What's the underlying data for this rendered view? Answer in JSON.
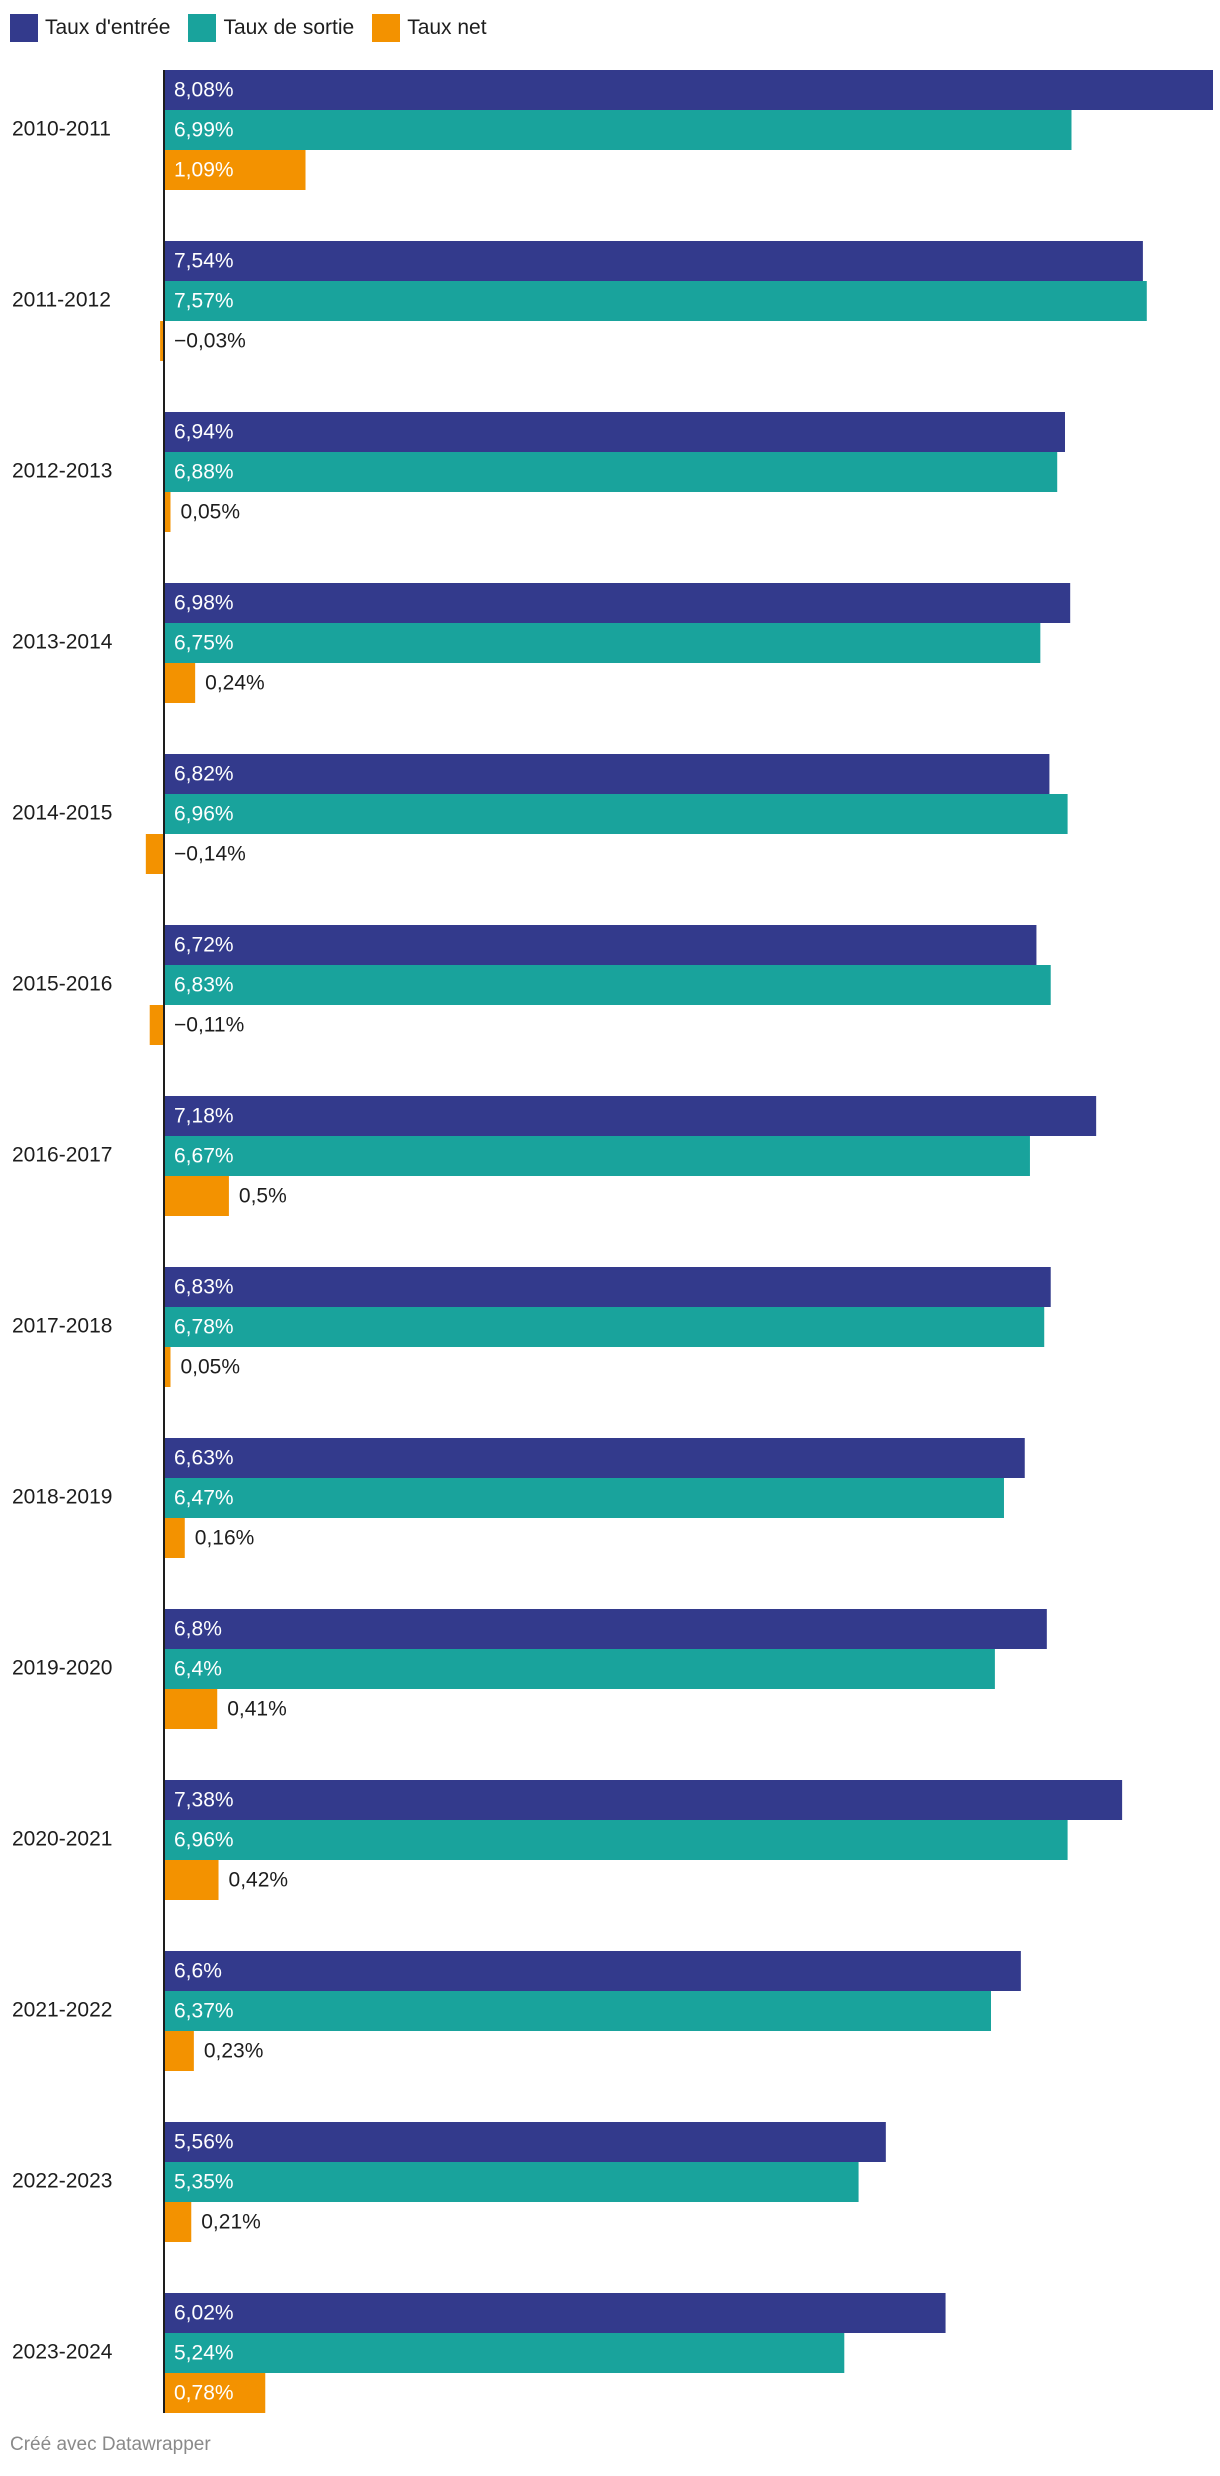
{
  "legend": {
    "items": [
      {
        "label": "Taux d'entrée",
        "color": "#333a8c"
      },
      {
        "label": "Taux de sortie",
        "color": "#19a39c"
      },
      {
        "label": "Taux net",
        "color": "#f39200"
      }
    ]
  },
  "footer": {
    "credit": "Créé avec Datawrapper"
  },
  "chart_data": {
    "type": "bar",
    "orientation": "horizontal",
    "title": "",
    "xlabel": "",
    "ylabel": "",
    "xlim": [
      -0.15,
      8.08
    ],
    "grid": false,
    "legend_position": "top-left",
    "categories": [
      "2010-2011",
      "2011-2012",
      "2012-2013",
      "2013-2014",
      "2014-2015",
      "2015-2016",
      "2016-2017",
      "2017-2018",
      "2018-2019",
      "2019-2020",
      "2020-2021",
      "2021-2022",
      "2022-2023",
      "2023-2024"
    ],
    "series": [
      {
        "name": "Taux d'entrée",
        "color": "#333a8c",
        "values": [
          8.08,
          7.54,
          6.94,
          6.98,
          6.82,
          6.72,
          7.18,
          6.83,
          6.63,
          6.8,
          7.38,
          6.6,
          5.56,
          6.02
        ],
        "labels": [
          "8,08%",
          "7,54%",
          "6,94%",
          "6,98%",
          "6,82%",
          "6,72%",
          "7,18%",
          "6,83%",
          "6,63%",
          "6,8%",
          "7,38%",
          "6,6%",
          "5,56%",
          "6,02%"
        ]
      },
      {
        "name": "Taux de sortie",
        "color": "#19a39c",
        "values": [
          6.99,
          7.57,
          6.88,
          6.75,
          6.96,
          6.83,
          6.67,
          6.78,
          6.47,
          6.4,
          6.96,
          6.37,
          5.35,
          5.24
        ],
        "labels": [
          "6,99%",
          "7,57%",
          "6,88%",
          "6,75%",
          "6,96%",
          "6,83%",
          "6,67%",
          "6,78%",
          "6,47%",
          "6,4%",
          "6,96%",
          "6,37%",
          "5,35%",
          "5,24%"
        ]
      },
      {
        "name": "Taux net",
        "color": "#f39200",
        "values": [
          1.09,
          -0.03,
          0.05,
          0.24,
          -0.14,
          -0.11,
          0.5,
          0.05,
          0.16,
          0.41,
          0.42,
          0.23,
          0.21,
          0.78
        ],
        "labels": [
          "1,09%",
          "−0,03%",
          "0,05%",
          "0,24%",
          "−0,14%",
          "−0,11%",
          "0,5%",
          "0,05%",
          "0,16%",
          "0,41%",
          "0,42%",
          "0,23%",
          "0,21%",
          "0,78%"
        ]
      }
    ]
  }
}
